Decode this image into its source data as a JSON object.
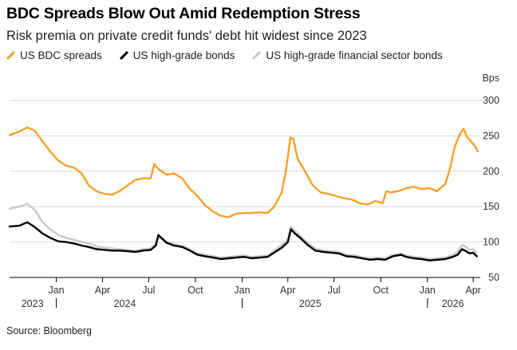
{
  "chart_data": {
    "type": "line",
    "title": "BDC Spreads Blow Out Amid Redemption Stress",
    "subtitle": "Risk premia on private credit funds' debt hit widest since 2023",
    "ylabel_unit": "Bps",
    "ylim": [
      50,
      300
    ],
    "yticks": [
      50,
      100,
      150,
      200,
      250,
      300
    ],
    "x_range": [
      "2023-10-01",
      "2026-04-15"
    ],
    "month_ticks": [
      {
        "label": "Jan",
        "date": "2024-01-01"
      },
      {
        "label": "Apr",
        "date": "2024-04-01"
      },
      {
        "label": "Jul",
        "date": "2024-07-01"
      },
      {
        "label": "Oct",
        "date": "2024-10-01"
      },
      {
        "label": "Jan",
        "date": "2025-01-01"
      },
      {
        "label": "Apr",
        "date": "2025-04-01"
      },
      {
        "label": "Jul",
        "date": "2025-07-01"
      },
      {
        "label": "Oct",
        "date": "2025-10-01"
      },
      {
        "label": "Jan",
        "date": "2026-01-01"
      },
      {
        "label": "Apr",
        "date": "2026-04-01"
      }
    ],
    "year_labels": [
      {
        "label": "2023",
        "date": "2023-11-15"
      },
      {
        "label": "2024",
        "date": "2024-05-15"
      },
      {
        "label": "2025",
        "date": "2025-05-15"
      },
      {
        "label": "2026",
        "date": "2026-02-20"
      }
    ],
    "year_dividers": [
      "2024-01-01",
      "2025-01-01",
      "2026-01-01"
    ],
    "grid": true,
    "legend_position": "top",
    "series": [
      {
        "name": "US BDC spreads",
        "color": "#f5a028",
        "points": [
          [
            "2023-10-01",
            251
          ],
          [
            "2023-10-20",
            256
          ],
          [
            "2023-11-05",
            262
          ],
          [
            "2023-11-20",
            257
          ],
          [
            "2023-12-05",
            242
          ],
          [
            "2023-12-20",
            228
          ],
          [
            "2024-01-05",
            215
          ],
          [
            "2024-01-20",
            208
          ],
          [
            "2024-02-05",
            205
          ],
          [
            "2024-02-20",
            197
          ],
          [
            "2024-03-05",
            180
          ],
          [
            "2024-03-20",
            172
          ],
          [
            "2024-04-05",
            168
          ],
          [
            "2024-04-20",
            167
          ],
          [
            "2024-05-05",
            172
          ],
          [
            "2024-05-20",
            180
          ],
          [
            "2024-06-05",
            188
          ],
          [
            "2024-06-20",
            190
          ],
          [
            "2024-07-05",
            190
          ],
          [
            "2024-07-12",
            210
          ],
          [
            "2024-07-20",
            203
          ],
          [
            "2024-08-05",
            195
          ],
          [
            "2024-08-20",
            197
          ],
          [
            "2024-09-05",
            190
          ],
          [
            "2024-09-20",
            175
          ],
          [
            "2024-10-05",
            165
          ],
          [
            "2024-10-20",
            152
          ],
          [
            "2024-11-05",
            143
          ],
          [
            "2024-11-20",
            137
          ],
          [
            "2024-12-05",
            135
          ],
          [
            "2024-12-20",
            140
          ],
          [
            "2025-01-05",
            141
          ],
          [
            "2025-01-20",
            141
          ],
          [
            "2025-02-05",
            142
          ],
          [
            "2025-02-20",
            141
          ],
          [
            "2025-03-05",
            150
          ],
          [
            "2025-03-20",
            170
          ],
          [
            "2025-03-28",
            200
          ],
          [
            "2025-04-02",
            225
          ],
          [
            "2025-04-06",
            248
          ],
          [
            "2025-04-12",
            245
          ],
          [
            "2025-04-20",
            218
          ],
          [
            "2025-05-05",
            200
          ],
          [
            "2025-05-20",
            180
          ],
          [
            "2025-06-05",
            170
          ],
          [
            "2025-06-20",
            168
          ],
          [
            "2025-07-05",
            165
          ],
          [
            "2025-07-20",
            162
          ],
          [
            "2025-08-05",
            160
          ],
          [
            "2025-08-20",
            155
          ],
          [
            "2025-09-05",
            153
          ],
          [
            "2025-09-20",
            158
          ],
          [
            "2025-10-05",
            155
          ],
          [
            "2025-10-12",
            172
          ],
          [
            "2025-10-20",
            170
          ],
          [
            "2025-11-05",
            172
          ],
          [
            "2025-11-20",
            176
          ],
          [
            "2025-12-05",
            178
          ],
          [
            "2025-12-20",
            175
          ],
          [
            "2026-01-05",
            176
          ],
          [
            "2026-01-20",
            172
          ],
          [
            "2026-02-05",
            182
          ],
          [
            "2026-02-15",
            205
          ],
          [
            "2026-02-22",
            230
          ],
          [
            "2026-03-01",
            245
          ],
          [
            "2026-03-08",
            255
          ],
          [
            "2026-03-13",
            260
          ],
          [
            "2026-03-20",
            248
          ],
          [
            "2026-03-28",
            242
          ],
          [
            "2026-04-05",
            235
          ],
          [
            "2026-04-10",
            228
          ]
        ]
      },
      {
        "name": "US high-grade bonds",
        "color": "#000000",
        "points": [
          [
            "2023-10-01",
            122
          ],
          [
            "2023-10-20",
            123
          ],
          [
            "2023-11-05",
            128
          ],
          [
            "2023-11-20",
            121
          ],
          [
            "2023-12-05",
            112
          ],
          [
            "2023-12-20",
            106
          ],
          [
            "2024-01-05",
            101
          ],
          [
            "2024-01-20",
            100
          ],
          [
            "2024-02-05",
            98
          ],
          [
            "2024-02-20",
            95
          ],
          [
            "2024-03-05",
            93
          ],
          [
            "2024-03-20",
            90
          ],
          [
            "2024-04-05",
            89
          ],
          [
            "2024-04-20",
            88
          ],
          [
            "2024-05-05",
            88
          ],
          [
            "2024-05-20",
            87
          ],
          [
            "2024-06-05",
            86
          ],
          [
            "2024-06-20",
            88
          ],
          [
            "2024-07-05",
            89
          ],
          [
            "2024-07-15",
            95
          ],
          [
            "2024-07-20",
            110
          ],
          [
            "2024-08-05",
            99
          ],
          [
            "2024-08-20",
            95
          ],
          [
            "2024-09-05",
            93
          ],
          [
            "2024-09-20",
            88
          ],
          [
            "2024-10-05",
            82
          ],
          [
            "2024-10-20",
            80
          ],
          [
            "2024-11-05",
            78
          ],
          [
            "2024-11-20",
            76
          ],
          [
            "2024-12-05",
            77
          ],
          [
            "2024-12-20",
            78
          ],
          [
            "2025-01-05",
            79
          ],
          [
            "2025-01-20",
            77
          ],
          [
            "2025-02-05",
            78
          ],
          [
            "2025-02-20",
            79
          ],
          [
            "2025-03-05",
            85
          ],
          [
            "2025-03-20",
            92
          ],
          [
            "2025-04-01",
            100
          ],
          [
            "2025-04-07",
            118
          ],
          [
            "2025-04-15",
            112
          ],
          [
            "2025-04-25",
            106
          ],
          [
            "2025-05-10",
            96
          ],
          [
            "2025-05-25",
            88
          ],
          [
            "2025-06-10",
            86
          ],
          [
            "2025-06-25",
            85
          ],
          [
            "2025-07-10",
            84
          ],
          [
            "2025-07-25",
            80
          ],
          [
            "2025-08-10",
            79
          ],
          [
            "2025-08-25",
            77
          ],
          [
            "2025-09-10",
            75
          ],
          [
            "2025-09-25",
            76
          ],
          [
            "2025-10-10",
            75
          ],
          [
            "2025-10-25",
            80
          ],
          [
            "2025-11-10",
            82
          ],
          [
            "2025-11-20",
            79
          ],
          [
            "2025-12-05",
            77
          ],
          [
            "2025-12-20",
            76
          ],
          [
            "2026-01-05",
            74
          ],
          [
            "2026-01-20",
            75
          ],
          [
            "2026-02-05",
            76
          ],
          [
            "2026-02-20",
            79
          ],
          [
            "2026-03-01",
            82
          ],
          [
            "2026-03-10",
            90
          ],
          [
            "2026-03-18",
            87
          ],
          [
            "2026-03-25",
            84
          ],
          [
            "2026-04-01",
            85
          ],
          [
            "2026-04-08",
            80
          ]
        ]
      },
      {
        "name": "US high-grade financial sector bonds",
        "color": "#c8c8c8",
        "points": [
          [
            "2023-10-01",
            147
          ],
          [
            "2023-10-20",
            150
          ],
          [
            "2023-11-05",
            154
          ],
          [
            "2023-11-20",
            145
          ],
          [
            "2023-12-05",
            128
          ],
          [
            "2023-12-20",
            118
          ],
          [
            "2024-01-05",
            110
          ],
          [
            "2024-01-20",
            106
          ],
          [
            "2024-02-05",
            103
          ],
          [
            "2024-02-20",
            100
          ],
          [
            "2024-03-05",
            98
          ],
          [
            "2024-03-20",
            94
          ],
          [
            "2024-04-05",
            92
          ],
          [
            "2024-04-20",
            91
          ],
          [
            "2024-05-05",
            90
          ],
          [
            "2024-05-20",
            89
          ],
          [
            "2024-06-05",
            88
          ],
          [
            "2024-06-20",
            90
          ],
          [
            "2024-07-05",
            91
          ],
          [
            "2024-07-15",
            98
          ],
          [
            "2024-07-20",
            107
          ],
          [
            "2024-08-05",
            101
          ],
          [
            "2024-08-20",
            97
          ],
          [
            "2024-09-05",
            95
          ],
          [
            "2024-09-20",
            90
          ],
          [
            "2024-10-05",
            84
          ],
          [
            "2024-10-20",
            82
          ],
          [
            "2024-11-05",
            80
          ],
          [
            "2024-11-20",
            78
          ],
          [
            "2024-12-05",
            79
          ],
          [
            "2024-12-20",
            80
          ],
          [
            "2025-01-05",
            81
          ],
          [
            "2025-01-20",
            79
          ],
          [
            "2025-02-05",
            80
          ],
          [
            "2025-02-20",
            81
          ],
          [
            "2025-03-05",
            88
          ],
          [
            "2025-03-20",
            96
          ],
          [
            "2025-04-01",
            104
          ],
          [
            "2025-04-07",
            122
          ],
          [
            "2025-04-15",
            116
          ],
          [
            "2025-04-25",
            109
          ],
          [
            "2025-05-10",
            99
          ],
          [
            "2025-05-25",
            91
          ],
          [
            "2025-06-10",
            88
          ],
          [
            "2025-06-25",
            87
          ],
          [
            "2025-07-10",
            86
          ],
          [
            "2025-07-25",
            82
          ],
          [
            "2025-08-10",
            81
          ],
          [
            "2025-08-25",
            79
          ],
          [
            "2025-09-10",
            77
          ],
          [
            "2025-09-25",
            78
          ],
          [
            "2025-10-10",
            77
          ],
          [
            "2025-10-25",
            82
          ],
          [
            "2025-11-10",
            84
          ],
          [
            "2025-11-20",
            81
          ],
          [
            "2025-12-05",
            79
          ],
          [
            "2025-12-20",
            78
          ],
          [
            "2026-01-05",
            76
          ],
          [
            "2026-01-20",
            77
          ],
          [
            "2026-02-05",
            78
          ],
          [
            "2026-02-20",
            82
          ],
          [
            "2026-03-01",
            86
          ],
          [
            "2026-03-10",
            96
          ],
          [
            "2026-03-18",
            93
          ],
          [
            "2026-03-25",
            89
          ],
          [
            "2026-04-01",
            90
          ],
          [
            "2026-04-08",
            85
          ]
        ]
      }
    ]
  },
  "source": "Source: Bloomberg"
}
